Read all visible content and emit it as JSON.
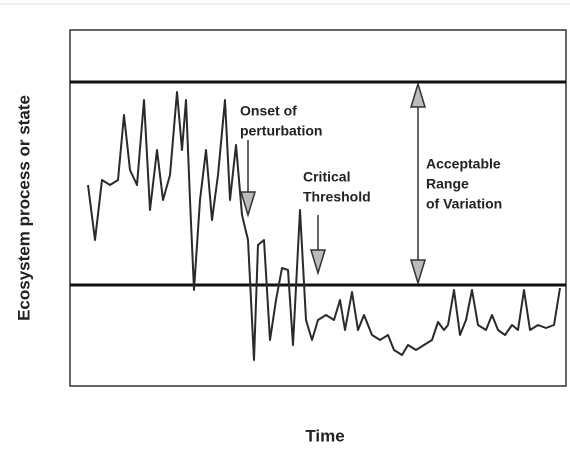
{
  "chart_data": {
    "type": "line",
    "y_label": "Ecosystem process or state",
    "x_label": "Time",
    "xlim": [
      0,
      496
    ],
    "ylim": [
      0,
      356
    ],
    "reference_lines": [
      304,
      101
    ],
    "color": "#2a2a2a",
    "x": [
      18,
      25,
      32,
      40,
      48,
      54,
      60,
      67,
      74,
      80,
      87,
      93,
      100,
      107,
      112,
      116,
      120,
      124,
      130,
      136,
      142,
      148,
      155,
      160,
      166,
      172,
      178,
      184,
      188,
      194,
      200,
      206,
      212,
      218,
      223,
      230,
      236,
      242,
      248,
      256,
      264,
      270,
      275,
      282,
      288,
      294,
      302,
      310,
      318,
      324,
      332,
      338,
      346,
      354,
      362,
      368,
      374,
      378,
      384,
      390,
      396,
      402,
      408,
      416,
      422,
      428,
      435,
      442,
      448,
      454,
      460,
      468,
      476,
      484,
      490
    ],
    "values": [
      201,
      146,
      206,
      201,
      206,
      271,
      216,
      201,
      286,
      176,
      236,
      186,
      211,
      294,
      236,
      286,
      186,
      96,
      186,
      236,
      166,
      211,
      286,
      186,
      241,
      171,
      146,
      26,
      141,
      146,
      46,
      86,
      118,
      116,
      41,
      176,
      66,
      46,
      66,
      71,
      66,
      86,
      56,
      94,
      56,
      71,
      51,
      46,
      51,
      36,
      31,
      41,
      36,
      41,
      46,
      64,
      56,
      61,
      96,
      51,
      66,
      96,
      61,
      56,
      71,
      56,
      51,
      61,
      56,
      96,
      56,
      61,
      58,
      61,
      98
    ],
    "annotations": [
      {
        "lines": [
          "Onset of",
          "perturbation"
        ]
      },
      {
        "lines": [
          "Critical",
          "Threshold"
        ]
      },
      {
        "lines": [
          "Acceptable",
          "Range",
          "of Variation"
        ]
      }
    ]
  }
}
